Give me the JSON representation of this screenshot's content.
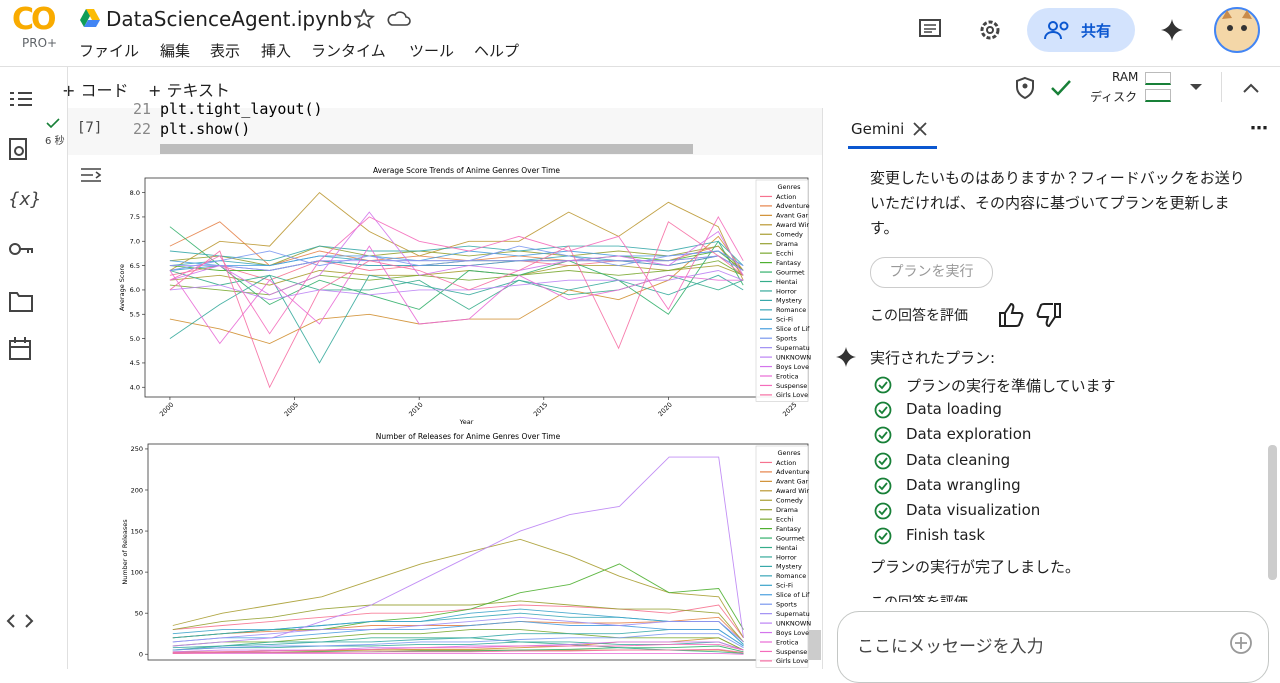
{
  "header": {
    "logo": "CO",
    "badge": "PRO+",
    "title": "DataScienceAgent.ipynb",
    "menu": [
      "ファイル",
      "編集",
      "表示",
      "挿入",
      "ランタイム",
      "ツール",
      "ヘルプ"
    ],
    "share": "共有"
  },
  "toolbar": {
    "add_code": "コード",
    "add_text": "テキスト",
    "ram": "RAM",
    "disk": "ディスク"
  },
  "cell": {
    "exec_count": "[7]",
    "duration": "6 秒",
    "lines": [
      {
        "no": "21",
        "code": "plt.tight_layout()"
      },
      {
        "no": "22",
        "code": "plt.show()"
      }
    ]
  },
  "chart_data": [
    {
      "type": "line",
      "title": "Average Score Trends of Anime Genres Over Time",
      "xlabel": "Year",
      "ylabel": "Average Score",
      "legend_title": "Genres",
      "x": [
        2000,
        2002,
        2004,
        2006,
        2008,
        2010,
        2012,
        2014,
        2016,
        2018,
        2020,
        2022,
        2023
      ],
      "xlim": [
        1999,
        2025.6
      ],
      "xticks": [
        2000,
        2005,
        2010,
        2015,
        2020,
        2025
      ],
      "ylim": [
        3.8,
        8.3
      ],
      "yticks": [
        {
          "value": 4,
          "label": "4.0"
        },
        4.5,
        {
          "value": 5,
          "label": "5.0"
        },
        5.5,
        {
          "value": 6,
          "label": "6.0"
        },
        6.5,
        {
          "value": 7,
          "label": "7.0"
        },
        7.5,
        {
          "value": 8,
          "label": "8.0"
        }
      ],
      "series": [
        {
          "name": "Action",
          "color": "#f6728f",
          "values": [
            6.3,
            6.5,
            6.2,
            6.6,
            6.4,
            6.5,
            6.5,
            6.6,
            6.5,
            6.6,
            6.5,
            6.7,
            6.4
          ]
        },
        {
          "name": "Adventure",
          "color": "#e6834a",
          "values": [
            6.9,
            7.4,
            6.5,
            6.8,
            6.6,
            6.7,
            6.6,
            6.7,
            6.6,
            6.6,
            6.6,
            6.9,
            6.3
          ]
        },
        {
          "name": "Avant Gar",
          "color": "#d08f31",
          "values": [
            5.4,
            5.2,
            4.9,
            5.4,
            5.5,
            5.3,
            5.4,
            5.4,
            6.0,
            5.8,
            6.2,
            7.1,
            6.4
          ]
        },
        {
          "name": "Award Wir",
          "color": "#bb9832",
          "values": [
            6.4,
            7.0,
            6.9,
            8.0,
            7.2,
            6.7,
            7.0,
            7.0,
            7.6,
            7.1,
            7.8,
            7.3,
            6.2
          ]
        },
        {
          "name": "Comedy",
          "color": "#a89d31",
          "values": [
            6.2,
            6.3,
            6.1,
            6.4,
            6.3,
            6.3,
            6.4,
            6.3,
            6.5,
            6.5,
            6.4,
            6.5,
            6.3
          ]
        },
        {
          "name": "Drama",
          "color": "#96a131",
          "values": [
            6.6,
            6.7,
            6.5,
            6.9,
            6.7,
            6.8,
            6.7,
            6.8,
            6.7,
            6.8,
            6.7,
            6.9,
            6.4
          ]
        },
        {
          "name": "Ecchi",
          "color": "#7aa831",
          "values": [
            6.1,
            6.0,
            5.9,
            6.3,
            6.2,
            6.3,
            6.2,
            6.3,
            6.4,
            6.3,
            6.4,
            6.6,
            6.3
          ]
        },
        {
          "name": "Fantasy",
          "color": "#4fb031",
          "values": [
            6.5,
            6.4,
            6.4,
            6.6,
            6.5,
            6.5,
            6.6,
            6.6,
            6.6,
            6.7,
            6.6,
            6.8,
            6.4
          ]
        },
        {
          "name": "Gourmet",
          "color": "#33b06b",
          "values": [
            7.3,
            6.5,
            5.7,
            6.2,
            5.9,
            5.6,
            6.4,
            6.3,
            6.6,
            6.2,
            5.5,
            7.0,
            6.1
          ]
        },
        {
          "name": "Hentai",
          "color": "#35ad8a",
          "values": [
            6.4,
            6.1,
            6.3,
            6.0,
            6.0,
            6.2,
            5.6,
            6.2,
            5.9,
            6.0,
            6.3,
            6.0,
            6.2
          ]
        },
        {
          "name": "Horror",
          "color": "#36aa9c",
          "values": [
            5.0,
            5.7,
            6.3,
            4.5,
            6.3,
            6.1,
            5.9,
            6.2,
            6.0,
            6.2,
            5.9,
            6.3,
            6.0
          ]
        },
        {
          "name": "Mystery",
          "color": "#37a8aa",
          "values": [
            6.8,
            6.7,
            6.6,
            6.9,
            6.8,
            6.8,
            6.9,
            6.8,
            6.9,
            6.9,
            6.8,
            7.0,
            6.5
          ]
        },
        {
          "name": "Romance",
          "color": "#38a6b8",
          "values": [
            6.5,
            6.6,
            6.5,
            6.7,
            6.6,
            6.6,
            6.6,
            6.6,
            6.7,
            6.6,
            6.6,
            6.7,
            6.4
          ]
        },
        {
          "name": "Sci-Fi",
          "color": "#3aa3ca",
          "values": [
            6.4,
            6.5,
            6.4,
            6.6,
            6.5,
            6.5,
            6.5,
            6.6,
            6.6,
            6.6,
            6.5,
            6.7,
            6.4
          ]
        },
        {
          "name": "Slice of Lif",
          "color": "#4a9fe0",
          "values": [
            6.6,
            6.5,
            6.5,
            6.7,
            6.7,
            6.6,
            6.8,
            6.7,
            6.8,
            6.7,
            6.7,
            6.8,
            6.5
          ]
        },
        {
          "name": "Sports",
          "color": "#7a98ef",
          "values": [
            6.4,
            6.6,
            6.8,
            6.5,
            6.7,
            6.5,
            6.6,
            6.9,
            6.7,
            6.5,
            6.7,
            6.8,
            6.5
          ]
        },
        {
          "name": "Supernatu",
          "color": "#a08ff4",
          "values": [
            6.5,
            6.5,
            6.4,
            6.6,
            6.6,
            6.6,
            6.6,
            6.6,
            6.6,
            6.6,
            6.6,
            6.7,
            6.4
          ]
        },
        {
          "name": "UNKNOWN",
          "color": "#bb83f4",
          "values": [
            6.0,
            6.1,
            5.8,
            6.0,
            5.9,
            6.0,
            6.0,
            6.1,
            6.2,
            6.2,
            6.2,
            6.4,
            6.2
          ]
        },
        {
          "name": "Boys Love",
          "color": "#d374ec",
          "values": [
            6.2,
            6.5,
            5.9,
            6.3,
            7.6,
            6.3,
            6.5,
            6.4,
            6.6,
            6.7,
            6.5,
            7.2,
            6.3
          ]
        },
        {
          "name": "Erotica",
          "color": "#e86ad6",
          "values": [
            6.4,
            4.9,
            6.2,
            5.3,
            6.9,
            5.3,
            5.4,
            6.3,
            5.8,
            6.0,
            6.3,
            6.2,
            6.2
          ]
        },
        {
          "name": "Suspense",
          "color": "#f46cbb",
          "values": [
            6.2,
            6.7,
            5.1,
            6.6,
            7.5,
            7.0,
            6.8,
            7.1,
            6.8,
            7.1,
            5.6,
            7.5,
            6.6
          ]
        },
        {
          "name": "Girls Love",
          "color": "#f66ea3",
          "values": [
            6.0,
            6.8,
            4.0,
            6.0,
            6.6,
            6.4,
            6.0,
            6.4,
            6.9,
            4.8,
            7.4,
            6.7,
            6.3
          ]
        }
      ]
    },
    {
      "type": "line",
      "title": "Number of Releases for Anime Genres Over Time",
      "ylabel": "Number of Releases",
      "legend_title": "Genres",
      "x": [
        2000,
        2002,
        2004,
        2006,
        2008,
        2010,
        2012,
        2014,
        2016,
        2018,
        2020,
        2022,
        2023
      ],
      "xlim": [
        1999,
        2025.6
      ],
      "ylim": [
        -7,
        256
      ],
      "yticks": [
        0,
        50,
        100,
        150,
        200,
        250
      ],
      "series": [
        {
          "name": "Action",
          "color": "#f6728f",
          "values": [
            30,
            35,
            40,
            45,
            50,
            50,
            55,
            60,
            58,
            55,
            50,
            60,
            20
          ]
        },
        {
          "name": "Adventure",
          "color": "#e6834a",
          "values": [
            20,
            25,
            28,
            30,
            35,
            35,
            35,
            40,
            38,
            38,
            40,
            45,
            15
          ]
        },
        {
          "name": "Avant Gar",
          "color": "#d08f31",
          "values": [
            2,
            3,
            4,
            5,
            5,
            6,
            6,
            8,
            10,
            15,
            15,
            20,
            5
          ]
        },
        {
          "name": "Award Wir",
          "color": "#bb9832",
          "values": [
            3,
            3,
            4,
            4,
            5,
            5,
            5,
            5,
            5,
            5,
            5,
            5,
            1
          ]
        },
        {
          "name": "Comedy",
          "color": "#a89d31",
          "values": [
            35,
            50,
            60,
            70,
            90,
            110,
            125,
            140,
            120,
            95,
            75,
            70,
            20
          ]
        },
        {
          "name": "Drama",
          "color": "#96a131",
          "values": [
            30,
            40,
            45,
            55,
            60,
            60,
            60,
            65,
            60,
            55,
            55,
            50,
            15
          ]
        },
        {
          "name": "Ecchi",
          "color": "#7aa831",
          "values": [
            10,
            15,
            15,
            20,
            25,
            25,
            30,
            30,
            25,
            20,
            20,
            20,
            5
          ]
        },
        {
          "name": "Fantasy",
          "color": "#4fb031",
          "values": [
            20,
            25,
            30,
            30,
            40,
            45,
            55,
            75,
            85,
            110,
            75,
            80,
            30
          ]
        },
        {
          "name": "Gourmet",
          "color": "#33b06b",
          "values": [
            1,
            2,
            2,
            3,
            3,
            4,
            4,
            5,
            6,
            8,
            8,
            10,
            3
          ]
        },
        {
          "name": "Hentai",
          "color": "#35ad8a",
          "values": [
            5,
            10,
            15,
            15,
            20,
            20,
            20,
            15,
            12,
            8,
            5,
            3,
            1
          ]
        },
        {
          "name": "Horror",
          "color": "#36aa9c",
          "values": [
            5,
            8,
            8,
            10,
            10,
            12,
            12,
            15,
            15,
            12,
            12,
            15,
            5
          ]
        },
        {
          "name": "Mystery",
          "color": "#37a8aa",
          "values": [
            8,
            10,
            12,
            15,
            15,
            18,
            20,
            25,
            25,
            25,
            30,
            30,
            10
          ]
        },
        {
          "name": "Romance",
          "color": "#38a6b8",
          "values": [
            20,
            25,
            30,
            35,
            40,
            40,
            45,
            50,
            45,
            45,
            40,
            40,
            12
          ]
        },
        {
          "name": "Sci-Fi",
          "color": "#3aa3ca",
          "values": [
            25,
            30,
            30,
            35,
            40,
            40,
            50,
            55,
            50,
            45,
            40,
            40,
            12
          ]
        },
        {
          "name": "Slice of Lif",
          "color": "#4a9fe0",
          "values": [
            15,
            20,
            20,
            25,
            30,
            30,
            35,
            40,
            35,
            35,
            30,
            30,
            10
          ]
        },
        {
          "name": "Sports",
          "color": "#7a98ef",
          "values": [
            5,
            8,
            10,
            10,
            12,
            15,
            15,
            18,
            20,
            20,
            25,
            25,
            8
          ]
        },
        {
          "name": "Supernatu",
          "color": "#a08ff4",
          "values": [
            15,
            20,
            25,
            30,
            30,
            35,
            40,
            45,
            40,
            35,
            40,
            40,
            15
          ]
        },
        {
          "name": "UNKNOWN",
          "color": "#bb83f4",
          "values": [
            10,
            15,
            20,
            40,
            60,
            90,
            120,
            150,
            170,
            180,
            240,
            240,
            20
          ]
        },
        {
          "name": "Boys Love",
          "color": "#d374ec",
          "values": [
            3,
            5,
            5,
            5,
            8,
            8,
            10,
            10,
            12,
            15,
            15,
            15,
            5
          ]
        },
        {
          "name": "Erotica",
          "color": "#e86ad6",
          "values": [
            1,
            1,
            1,
            1,
            1,
            1,
            1,
            1,
            1,
            1,
            1,
            1,
            0
          ]
        },
        {
          "name": "Suspense",
          "color": "#f46cbb",
          "values": [
            2,
            3,
            4,
            5,
            6,
            8,
            8,
            10,
            10,
            10,
            12,
            12,
            5
          ]
        },
        {
          "name": "Girls Love",
          "color": "#f66ea3",
          "values": [
            1,
            2,
            2,
            2,
            3,
            3,
            3,
            4,
            4,
            5,
            5,
            6,
            2
          ]
        }
      ]
    }
  ],
  "gemini": {
    "tab": "Gemini",
    "message": "変更したいものはありますか？フィードバックをお送りいただければ、その内容に基づいてプランを更新します。",
    "run_button": "プランを実行",
    "rate": "この回答を評価",
    "plan_heading": "実行されたプラン:",
    "plan_steps": [
      "プランの実行を準備しています",
      "Data loading",
      "Data exploration",
      "Data cleaning",
      "Data wrangling",
      "Data visualization",
      "Finish task"
    ],
    "done": "プランの実行が完了しました。",
    "rate_again": "この回答を評価",
    "input_placeholder": "ここにメッセージを入力"
  }
}
